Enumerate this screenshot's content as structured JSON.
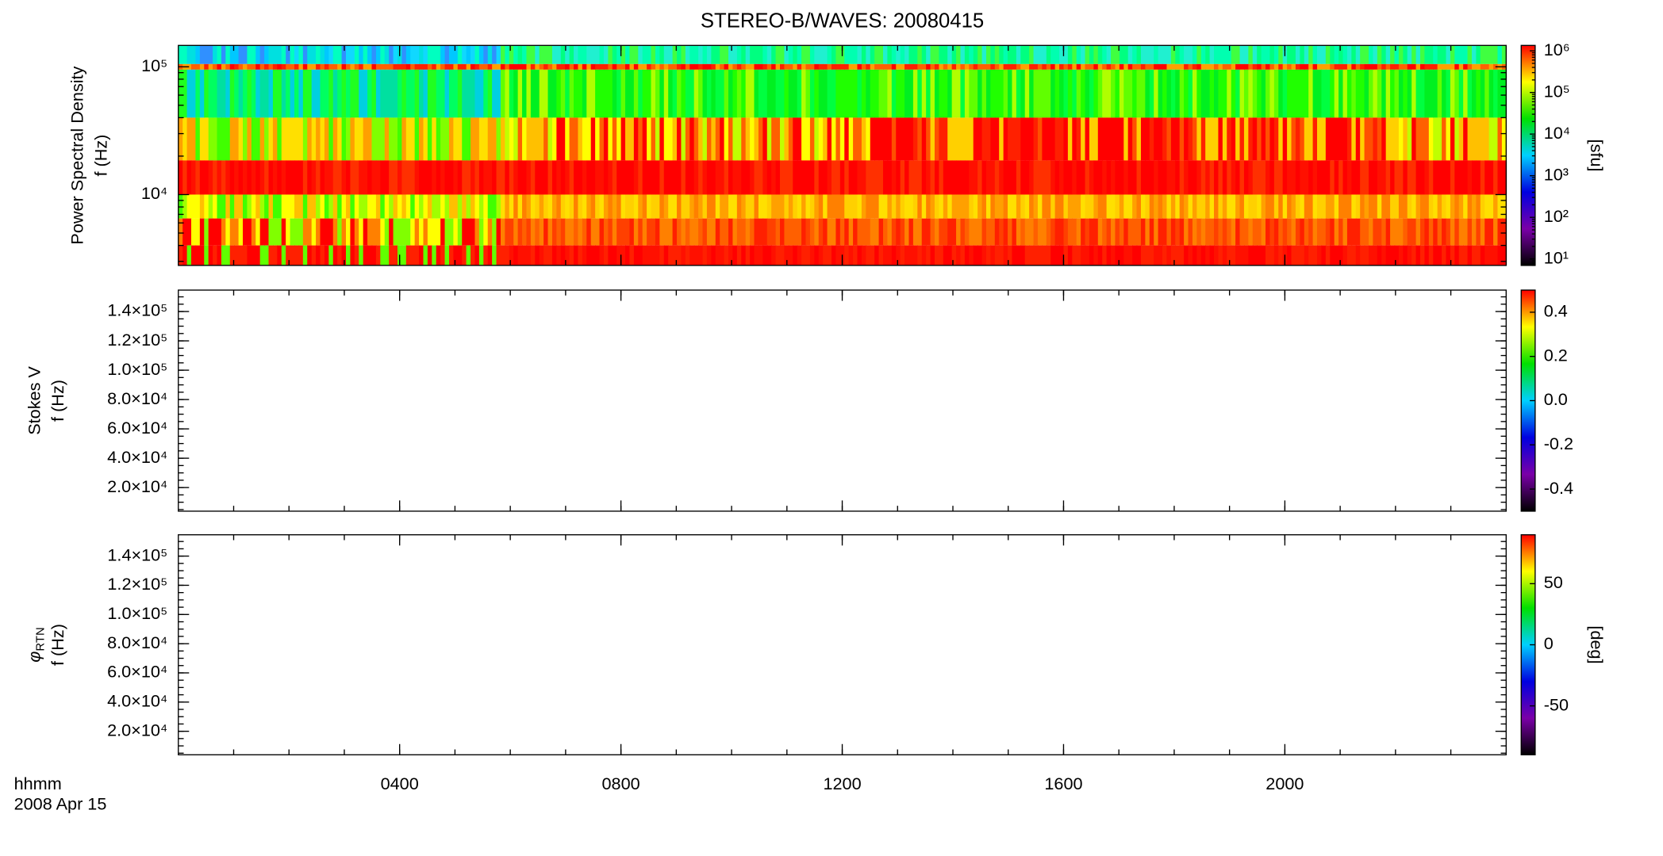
{
  "chart_data": [
    {
      "type": "heatmap",
      "title": "STEREO-B/WAVES: 20080415",
      "ylabel": [
        "Power Spectral Density",
        "f (Hz)"
      ],
      "ylog": true,
      "ylim": [
        2790,
        147000
      ],
      "yticks": [
        {
          "value": 10000,
          "label": "10⁴"
        },
        {
          "value": 100000,
          "label": "10⁵"
        }
      ],
      "colorbar": {
        "label": "[sfu]",
        "log": true,
        "lim": [
          7,
          1350000
        ],
        "ticks": [
          {
            "value": 10,
            "label": "10¹"
          },
          {
            "value": 100,
            "label": "10²"
          },
          {
            "value": 1000,
            "label": "10³"
          },
          {
            "value": 10000,
            "label": "10⁴"
          },
          {
            "value": 100000,
            "label": "10⁵"
          },
          {
            "value": 1000000,
            "label": "10⁶"
          }
        ],
        "colormap": [
          "#000000",
          "#7a00a8",
          "#0000e0",
          "#00d0ff",
          "#00e000",
          "#ffff00",
          "#ff0000"
        ]
      }
    },
    {
      "type": "heatmap",
      "ylabel": [
        "Stokes V",
        "f (Hz)"
      ],
      "ylim": [
        3900,
        154600
      ],
      "yticks": [
        {
          "value": 20000,
          "label": "2.0×10⁴"
        },
        {
          "value": 40000,
          "label": "4.0×10⁴"
        },
        {
          "value": 60000,
          "label": "6.0×10⁴"
        },
        {
          "value": 80000,
          "label": "8.0×10⁴"
        },
        {
          "value": 100000,
          "label": "1.0×10⁵"
        },
        {
          "value": 120000,
          "label": "1.2×10⁵"
        },
        {
          "value": 140000,
          "label": "1.4×10⁵"
        }
      ],
      "colorbar": {
        "lim": [
          -0.5,
          0.5
        ],
        "ticks": [
          -0.4,
          -0.2,
          {
            "value": 0,
            "label": "0.0"
          },
          0.2,
          0.4
        ],
        "colormap": [
          "#000000",
          "#7a00a8",
          "#0000e0",
          "#00d0ff",
          "#00e000",
          "#ffff00",
          "#ff0000"
        ]
      }
    },
    {
      "type": "heatmap",
      "ylabel_symbol": "φ",
      "ylabel_subscript": "RTN",
      "ylabel": [
        "f (Hz)"
      ],
      "ylim": [
        3900,
        154600
      ],
      "yticks": [
        {
          "value": 20000,
          "label": "2.0×10⁴"
        },
        {
          "value": 40000,
          "label": "4.0×10⁴"
        },
        {
          "value": 60000,
          "label": "6.0×10⁴"
        },
        {
          "value": 80000,
          "label": "8.0×10⁴"
        },
        {
          "value": 100000,
          "label": "1.0×10⁵"
        },
        {
          "value": 120000,
          "label": "1.2×10⁵"
        },
        {
          "value": 140000,
          "label": "1.4×10⁵"
        }
      ],
      "colorbar": {
        "label": "[deg]",
        "lim": [
          -90,
          90
        ],
        "ticks": [
          -50,
          0,
          50
        ],
        "colormap": [
          "#000000",
          "#7a00a8",
          "#0000e0",
          "#00d0ff",
          "#00e000",
          "#ffff00",
          "#ff0000"
        ]
      },
      "xlim": [
        0,
        24
      ],
      "xticks": [
        {
          "value": 4,
          "label": "0400"
        },
        {
          "value": 8,
          "label": "0800"
        },
        {
          "value": 12,
          "label": "1200"
        },
        {
          "value": 16,
          "label": "1600"
        },
        {
          "value": 20,
          "label": "2000"
        }
      ],
      "xlabel": "hhmm",
      "date": "2008 Apr 15"
    }
  ]
}
